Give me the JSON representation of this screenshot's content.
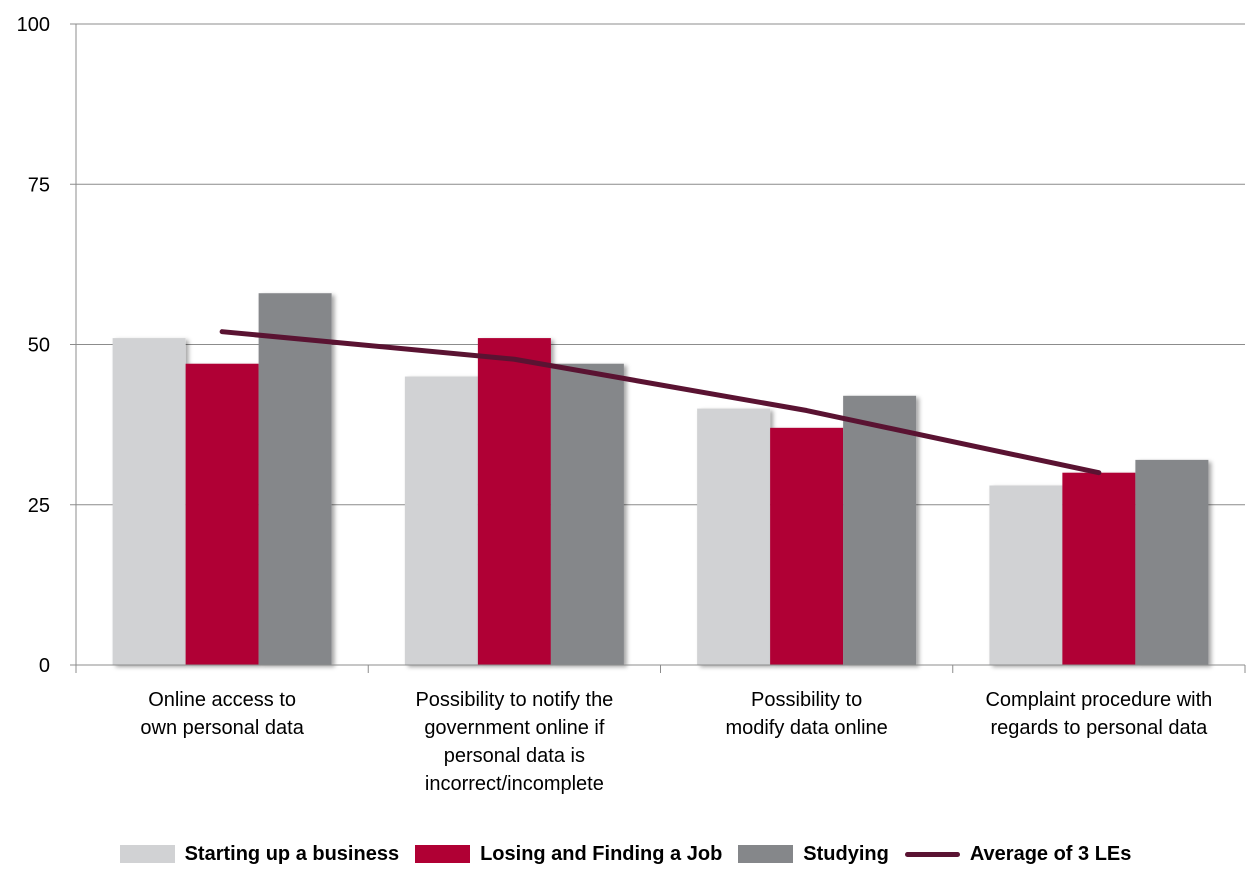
{
  "chart_data": {
    "type": "bar",
    "categories": [
      [
        "Online access to",
        "own personal data"
      ],
      [
        "Possibility to notify the",
        "government online if",
        "personal data is",
        "incorrect/incomplete"
      ],
      [
        "Possibility to",
        "modify data online"
      ],
      [
        "Complaint procedure with",
        "regards to personal data"
      ]
    ],
    "series": [
      {
        "name": "Starting up a business",
        "kind": "bar",
        "color": "#D1D2D4",
        "values": [
          51,
          45,
          40,
          28
        ]
      },
      {
        "name": "Losing and Finding a Job",
        "kind": "bar",
        "color": "#B00034",
        "values": [
          47,
          51,
          37,
          30
        ]
      },
      {
        "name": "Studying",
        "kind": "bar",
        "color": "#85878A",
        "values": [
          58,
          47,
          42,
          32
        ]
      },
      {
        "name": "Average of 3 LEs",
        "kind": "line",
        "color": "#5A1332",
        "values": [
          52,
          47.7,
          39.7,
          30
        ]
      }
    ],
    "ylim": [
      0,
      100
    ],
    "yticks": [
      0,
      25,
      50,
      75,
      100
    ],
    "grid": true,
    "legend_position": "bottom"
  }
}
